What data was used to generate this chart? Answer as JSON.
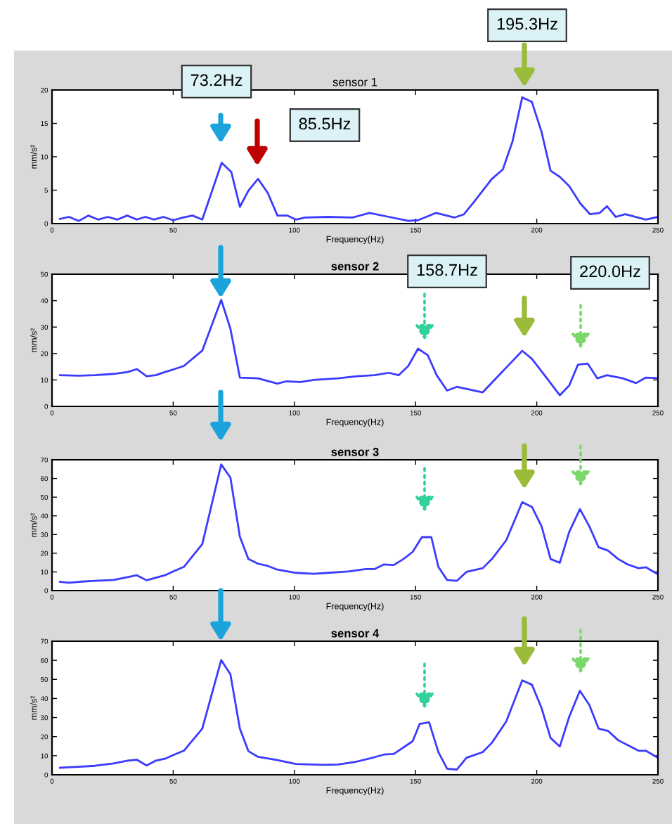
{
  "chart_data": [
    {
      "type": "line",
      "title": "sensor 1",
      "xlabel": "Frequency(Hz)",
      "ylabel": "mm/s²",
      "xlim": [
        0,
        250
      ],
      "xticks": [
        0,
        50,
        100,
        150,
        200,
        250
      ],
      "ylim": [
        0,
        20
      ],
      "yticks": [
        0,
        5,
        10,
        15,
        20
      ],
      "grid": false,
      "legend": false,
      "annotations": [
        "73.2Hz",
        "85.5Hz",
        "195.3Hz"
      ],
      "series": [
        {
          "color": "#3b3bff",
          "x": [
            3.3,
            7,
            11,
            15,
            19,
            23,
            27,
            31,
            35,
            38.5,
            42,
            46,
            50,
            54,
            58,
            62,
            70,
            74,
            77.5,
            81,
            85,
            89,
            93,
            97,
            100.6,
            104.5,
            114,
            124,
            131,
            139,
            147,
            151,
            158.5,
            166,
            170,
            174,
            181.5,
            186,
            190,
            194,
            198,
            202,
            205.7,
            209.5,
            213.4,
            218,
            222,
            226,
            229,
            232.6,
            236.5,
            245,
            250
          ],
          "values": [
            0.7,
            1.0,
            0.4,
            1.2,
            0.6,
            1.0,
            0.6,
            1.2,
            0.6,
            1.0,
            0.6,
            1.0,
            0.5,
            0.9,
            1.2,
            0.6,
            9.1,
            7.7,
            2.5,
            4.9,
            6.7,
            4.6,
            1.2,
            1.2,
            0.6,
            0.9,
            1.0,
            0.9,
            1.6,
            1.0,
            0.4,
            0.5,
            1.6,
            0.9,
            1.4,
            3.2,
            6.7,
            8.1,
            12.3,
            18.9,
            18.2,
            13.7,
            7.9,
            7.0,
            5.6,
            3.0,
            1.4,
            1.6,
            2.6,
            1.0,
            1.4,
            0.6,
            1.0
          ]
        }
      ]
    },
    {
      "type": "line",
      "title": "sensor 2",
      "xlabel": "Frequency(Hz)",
      "ylabel": "mm/s²",
      "xlim": [
        0,
        250
      ],
      "xticks": [
        0,
        50,
        100,
        150,
        200,
        250
      ],
      "ylim": [
        0,
        50
      ],
      "yticks": [
        0,
        10,
        20,
        30,
        40,
        50
      ],
      "grid": false,
      "legend": false,
      "annotations": [
        "158.7Hz",
        "220.0Hz"
      ],
      "series": [
        {
          "color": "#3b3bff",
          "x": [
            3.3,
            11,
            17.7,
            25.4,
            31.2,
            35,
            39,
            42.8,
            46.6,
            50.5,
            54.4,
            62,
            69.8,
            73.6,
            77.5,
            85,
            93,
            96.8,
            102.5,
            108,
            118,
            125.7,
            133,
            139,
            143,
            147,
            151,
            155,
            158.7,
            163,
            167,
            177.7,
            183.5,
            189,
            194,
            198,
            204.7,
            209.5,
            213.4,
            217,
            221,
            225,
            229,
            235.5,
            241,
            245,
            250
          ],
          "values": [
            11.8,
            11.6,
            11.8,
            12.3,
            13,
            14.1,
            11.4,
            11.8,
            13,
            14.1,
            15.3,
            21.1,
            40.3,
            29.4,
            10.9,
            10.6,
            8.6,
            9.5,
            9.2,
            10,
            10.6,
            11.4,
            11.8,
            12.7,
            11.8,
            15.3,
            21.8,
            19.4,
            11.8,
            6,
            7.4,
            5.3,
            10.9,
            16.2,
            21,
            18,
            10,
            4.2,
            7.9,
            15.8,
            16.2,
            10.6,
            11.8,
            10.6,
            8.8,
            10.9,
            10.7
          ]
        }
      ]
    },
    {
      "type": "line",
      "title": "sensor 3",
      "xlabel": "Frequency(Hz)",
      "ylabel": "mm/s²",
      "xlim": [
        0,
        250
      ],
      "xticks": [
        0,
        50,
        100,
        150,
        200,
        250
      ],
      "ylim": [
        0,
        70
      ],
      "yticks": [
        0,
        10,
        20,
        30,
        40,
        50,
        60,
        70
      ],
      "grid": false,
      "legend": false,
      "series": [
        {
          "color": "#3b3bff",
          "x": [
            3.3,
            7,
            11,
            17.7,
            25.4,
            31.2,
            35,
            39,
            46.6,
            50.5,
            54.4,
            62,
            69.8,
            73.6,
            77.5,
            81,
            85,
            89,
            93,
            100.6,
            108,
            114,
            122,
            129.5,
            133,
            137,
            141,
            145,
            148.8,
            152.6,
            156.5,
            159.4,
            163,
            167,
            171,
            177.7,
            181.5,
            187.4,
            194,
            198,
            202,
            205.7,
            209.5,
            213.4,
            217.8,
            221.7,
            225.5,
            229.4,
            233.6,
            237.5,
            242,
            245,
            250
          ],
          "values": [
            4.7,
            4.2,
            4.7,
            5.2,
            5.7,
            7.2,
            8.2,
            5.5,
            8.2,
            10.5,
            12.7,
            24.9,
            67.5,
            60.5,
            28.9,
            16.9,
            14.4,
            13.2,
            11.2,
            9.5,
            9,
            9.5,
            10.2,
            11.5,
            11.5,
            14,
            13.7,
            16.9,
            20.7,
            28.6,
            28.6,
            12.7,
            5.7,
            5.2,
            10,
            12,
            16.9,
            26.9,
            47.3,
            44.8,
            34.4,
            16.9,
            14.9,
            31.4,
            43.6,
            34.4,
            23.2,
            21.4,
            16.9,
            14,
            12,
            12.5,
            8.7
          ]
        }
      ]
    },
    {
      "type": "line",
      "title": "sensor 4",
      "xlabel": "Frequency(Hz)",
      "ylabel": "mm/s²",
      "xlim": [
        0,
        250
      ],
      "xticks": [
        0,
        50,
        100,
        150,
        200,
        250
      ],
      "ylim": [
        0,
        70
      ],
      "yticks": [
        0,
        10,
        20,
        30,
        40,
        50,
        60,
        70
      ],
      "grid": false,
      "legend": false,
      "series": [
        {
          "color": "#3b3bff",
          "x": [
            3.3,
            11,
            17.7,
            25.4,
            31.2,
            35,
            39,
            42.8,
            46.6,
            50.5,
            54.4,
            62,
            69.8,
            73.6,
            77.5,
            81,
            85,
            93,
            100.6,
            112,
            118,
            125.7,
            133,
            137,
            141,
            148.8,
            151.7,
            155.6,
            159.4,
            163,
            167,
            171,
            177.7,
            181.5,
            187.4,
            194,
            198,
            202,
            205.7,
            209.5,
            213.4,
            217.8,
            221.7,
            225.5,
            229.4,
            233.6,
            237.5,
            242,
            245,
            250
          ],
          "values": [
            3.7,
            4.2,
            4.7,
            5.9,
            7.4,
            7.9,
            4.9,
            7.4,
            8.4,
            10.6,
            12.6,
            24.2,
            60.1,
            52.7,
            24.2,
            12.4,
            9.4,
            7.7,
            5.7,
            5.2,
            5.4,
            6.9,
            9.2,
            10.6,
            10.9,
            17.6,
            26.7,
            27.5,
            11.9,
            3.2,
            2.7,
            8.9,
            11.9,
            16.8,
            27.9,
            49.5,
            47.2,
            34.9,
            19.3,
            14.8,
            30.4,
            44,
            36.6,
            24.2,
            23,
            18.1,
            15.6,
            12.6,
            12.6,
            8.9
          ]
        }
      ]
    }
  ]
}
